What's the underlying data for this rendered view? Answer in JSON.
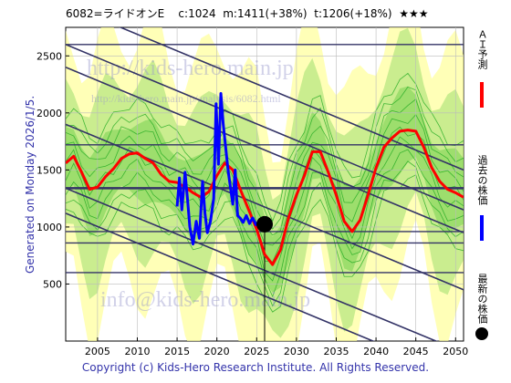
{
  "header": {
    "title": "6082=ライドオンE    c:1024  m:1411(+38%)  t:1206(+18%)  ★★★"
  },
  "side_text": "Generated on Monday 2026/1/5.",
  "footer": "Copyright (c) Kids-Hero Research Institute. All Rights Reserved.",
  "watermarks": {
    "top": "http://kids-hero.main.jp",
    "mid": "http://kids-hero.main.jp/analysis/6082.html",
    "bottom": "info@kids-hero.main.jp"
  },
  "legend": {
    "ai_forecast": "ＡＩ予測",
    "past_price": "過去の株価",
    "latest_price": "最新の株価"
  },
  "colors": {
    "forecast": "#ff0000",
    "past": "#0000ff",
    "latest": "#000000",
    "band_green": "#66cc44",
    "band_yellow": "#ffff99",
    "trend": "#333366"
  },
  "chart_data": {
    "type": "line",
    "xlim": [
      2001,
      2051
    ],
    "ylim": [
      0,
      2750
    ],
    "x_ticks": [
      2005,
      2010,
      2015,
      2020,
      2025,
      2030,
      2035,
      2040,
      2045,
      2050
    ],
    "y_ticks": [
      500,
      1000,
      1500,
      2000,
      2500
    ],
    "horizontal_levels": [
      2600,
      1720,
      1340,
      960,
      860,
      600
    ],
    "latest": {
      "x": 2026.0,
      "y": 1024
    },
    "series": [
      {
        "name": "ＡＩ予測",
        "points": [
          [
            2001,
            1560
          ],
          [
            2002,
            1620
          ],
          [
            2003,
            1480
          ],
          [
            2004,
            1330
          ],
          [
            2005,
            1350
          ],
          [
            2006,
            1440
          ],
          [
            2007,
            1510
          ],
          [
            2008,
            1600
          ],
          [
            2009,
            1640
          ],
          [
            2010,
            1650
          ],
          [
            2011,
            1600
          ],
          [
            2012,
            1560
          ],
          [
            2013,
            1460
          ],
          [
            2014,
            1400
          ],
          [
            2015,
            1390
          ],
          [
            2016,
            1350
          ],
          [
            2017,
            1300
          ],
          [
            2018,
            1260
          ],
          [
            2019,
            1310
          ],
          [
            2020,
            1450
          ],
          [
            2021,
            1560
          ],
          [
            2022,
            1500
          ],
          [
            2023,
            1320
          ],
          [
            2024,
            1150
          ],
          [
            2025,
            980
          ],
          [
            2026,
            760
          ],
          [
            2027,
            670
          ],
          [
            2028,
            800
          ],
          [
            2029,
            1080
          ],
          [
            2030,
            1280
          ],
          [
            2031,
            1450
          ],
          [
            2032,
            1660
          ],
          [
            2033,
            1660
          ],
          [
            2034,
            1480
          ],
          [
            2035,
            1280
          ],
          [
            2036,
            1050
          ],
          [
            2037,
            960
          ],
          [
            2038,
            1060
          ],
          [
            2039,
            1280
          ],
          [
            2040,
            1520
          ],
          [
            2041,
            1700
          ],
          [
            2042,
            1780
          ],
          [
            2043,
            1840
          ],
          [
            2044,
            1850
          ],
          [
            2045,
            1840
          ],
          [
            2046,
            1700
          ],
          [
            2047,
            1520
          ],
          [
            2048,
            1400
          ],
          [
            2049,
            1330
          ],
          [
            2050,
            1300
          ],
          [
            2051,
            1260
          ]
        ]
      },
      {
        "name": "過去の株価",
        "points": [
          [
            2015.0,
            1180
          ],
          [
            2015.3,
            1430
          ],
          [
            2015.6,
            1150
          ],
          [
            2016.0,
            1480
          ],
          [
            2016.3,
            1250
          ],
          [
            2016.6,
            1000
          ],
          [
            2017.0,
            850
          ],
          [
            2017.4,
            1050
          ],
          [
            2017.8,
            900
          ],
          [
            2018.2,
            1400
          ],
          [
            2018.5,
            1120
          ],
          [
            2018.8,
            950
          ],
          [
            2019.2,
            1050
          ],
          [
            2019.6,
            1250
          ],
          [
            2019.9,
            2080
          ],
          [
            2020.2,
            1550
          ],
          [
            2020.5,
            2170
          ],
          [
            2020.8,
            1900
          ],
          [
            2021.1,
            1700
          ],
          [
            2021.4,
            1500
          ],
          [
            2021.7,
            1350
          ],
          [
            2022.0,
            1200
          ],
          [
            2022.3,
            1500
          ],
          [
            2022.6,
            1100
          ],
          [
            2022.9,
            1080
          ],
          [
            2023.3,
            1040
          ],
          [
            2023.7,
            1100
          ],
          [
            2024.1,
            1030
          ],
          [
            2024.5,
            1080
          ],
          [
            2024.9,
            1020
          ],
          [
            2025.3,
            1050
          ],
          [
            2025.7,
            1024
          ]
        ]
      }
    ]
  }
}
